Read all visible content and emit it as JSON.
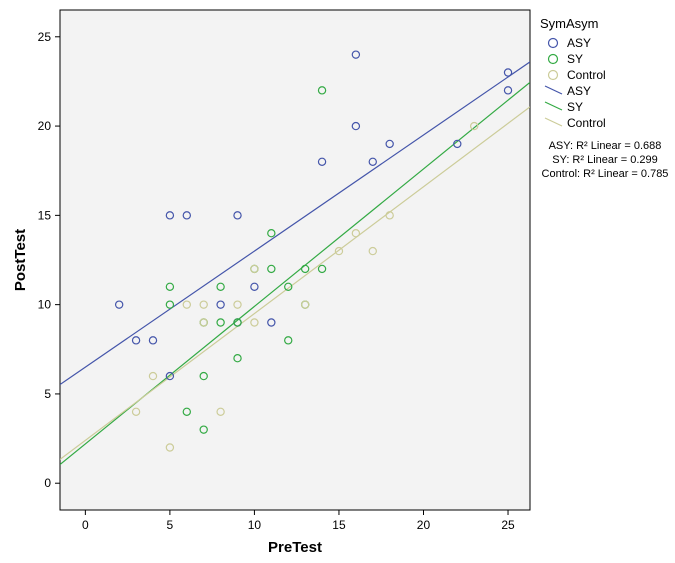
{
  "chart_data": {
    "type": "scatter",
    "xlabel": "PreTest",
    "ylabel": "PostTest",
    "xlim": [
      -1.5,
      26.3
    ],
    "ylim": [
      -1.5,
      26.5
    ],
    "xticks": [
      "0",
      "5",
      "10",
      "15",
      "20",
      "25"
    ],
    "yticks": [
      "0",
      "5",
      "10",
      "15",
      "20",
      "25"
    ],
    "grid": false,
    "legend_position": "right",
    "legend_title": "SymAsym",
    "series": [
      {
        "name": "ASY",
        "color": "#4455aa",
        "points": [
          [
            2,
            10
          ],
          [
            3,
            8
          ],
          [
            4,
            8
          ],
          [
            5,
            6
          ],
          [
            5,
            15
          ],
          [
            6,
            15
          ],
          [
            8,
            10
          ],
          [
            9,
            9
          ],
          [
            9,
            15
          ],
          [
            10,
            11
          ],
          [
            11,
            9
          ],
          [
            14,
            18
          ],
          [
            16,
            20
          ],
          [
            16,
            24
          ],
          [
            17,
            18
          ],
          [
            18,
            19
          ],
          [
            22,
            19
          ],
          [
            25,
            22
          ],
          [
            25,
            23
          ]
        ],
        "fit": {
          "intercept": 6.5,
          "slope": 0.65
        },
        "r2_text": "ASY: R² Linear = 0.688"
      },
      {
        "name": "SY",
        "color": "#33aa44",
        "points": [
          [
            5,
            10
          ],
          [
            5,
            11
          ],
          [
            6,
            4
          ],
          [
            7,
            3
          ],
          [
            7,
            6
          ],
          [
            7,
            9
          ],
          [
            8,
            9
          ],
          [
            8,
            11
          ],
          [
            9,
            7
          ],
          [
            9,
            9
          ],
          [
            10,
            12
          ],
          [
            11,
            12
          ],
          [
            11,
            14
          ],
          [
            12,
            8
          ],
          [
            12,
            11
          ],
          [
            13,
            10
          ],
          [
            13,
            12
          ],
          [
            14,
            12
          ],
          [
            14,
            22
          ]
        ],
        "fit": {
          "intercept": 2.2,
          "slope": 0.77
        },
        "r2_text": "SY: R² Linear = 0.299"
      },
      {
        "name": "Control",
        "color": "#cccc99",
        "points": [
          [
            3,
            4
          ],
          [
            4,
            6
          ],
          [
            5,
            2
          ],
          [
            6,
            10
          ],
          [
            7,
            9
          ],
          [
            7,
            10
          ],
          [
            8,
            4
          ],
          [
            9,
            10
          ],
          [
            10,
            9
          ],
          [
            10,
            12
          ],
          [
            13,
            10
          ],
          [
            15,
            13
          ],
          [
            16,
            14
          ],
          [
            17,
            13
          ],
          [
            18,
            15
          ],
          [
            23,
            20
          ]
        ],
        "fit": {
          "intercept": 2.4,
          "slope": 0.71
        },
        "r2_text": "Control: R² Linear = 0.785"
      }
    ]
  }
}
